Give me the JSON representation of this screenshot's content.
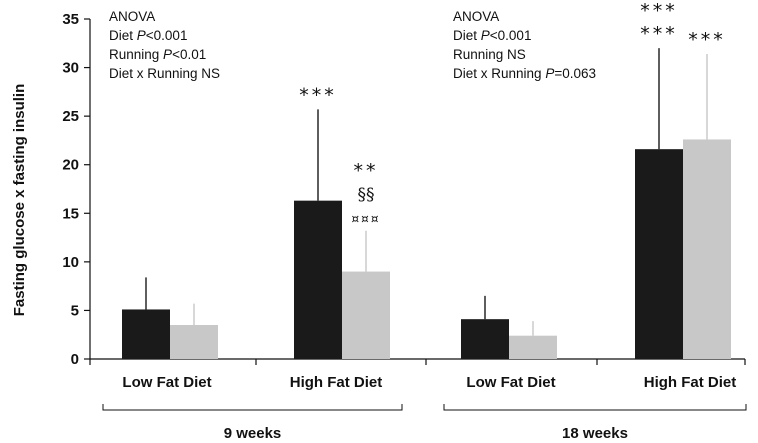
{
  "chart_data": {
    "type": "bar",
    "ylabel": "Fasting glucose x fasting insulin",
    "ylim": [
      0,
      35
    ],
    "yticks": [
      0,
      5,
      10,
      15,
      20,
      25,
      30,
      35
    ],
    "grid": false,
    "colors": {
      "black_bar": "#1a1a1a",
      "grey_bar": "#c8c8c8"
    },
    "groups": [
      {
        "label": "9 weeks",
        "annotation": [
          [
            {
              "t": "ANOVA"
            }
          ],
          [
            {
              "t": "Diet "
            },
            {
              "t": "P",
              "italic": true
            },
            {
              "t": "<0.001"
            }
          ],
          [
            {
              "t": "Running "
            },
            {
              "t": "P",
              "italic": true
            },
            {
              "t": "<0.01"
            }
          ],
          [
            {
              "t": "Diet x Running NS"
            }
          ]
        ],
        "categories": [
          {
            "label": "Low Fat Diet",
            "bars": [
              {
                "value": 5.1,
                "error": 3.3,
                "marks": []
              },
              {
                "value": 3.5,
                "error": 2.2,
                "marks": []
              }
            ]
          },
          {
            "label": "High Fat Diet",
            "bars": [
              {
                "value": 16.3,
                "error": 9.4,
                "marks": [
                  "***"
                ]
              },
              {
                "value": 9.0,
                "error": 4.2,
                "marks": [
                  "**",
                  "§§",
                  "¤¤¤"
                ]
              }
            ]
          }
        ]
      },
      {
        "label": "18 weeks",
        "annotation": [
          [
            {
              "t": "ANOVA"
            }
          ],
          [
            {
              "t": "Diet "
            },
            {
              "t": "P",
              "italic": true
            },
            {
              "t": "<0.001"
            }
          ],
          [
            {
              "t": "Running NS"
            }
          ],
          [
            {
              "t": "Diet x Running "
            },
            {
              "t": "P",
              "italic": true
            },
            {
              "t": "=0.063"
            }
          ]
        ],
        "categories": [
          {
            "label": "Low Fat Diet",
            "bars": [
              {
                "value": 4.1,
                "error": 2.4,
                "marks": []
              },
              {
                "value": 2.4,
                "error": 1.5,
                "marks": []
              }
            ]
          },
          {
            "label": "High Fat Diet",
            "bars": [
              {
                "value": 21.6,
                "error": 10.4,
                "marks": [
                  "***",
                  "***"
                ]
              },
              {
                "value": 22.6,
                "error": 8.8,
                "marks": [
                  "***"
                ]
              }
            ]
          }
        ]
      }
    ]
  }
}
